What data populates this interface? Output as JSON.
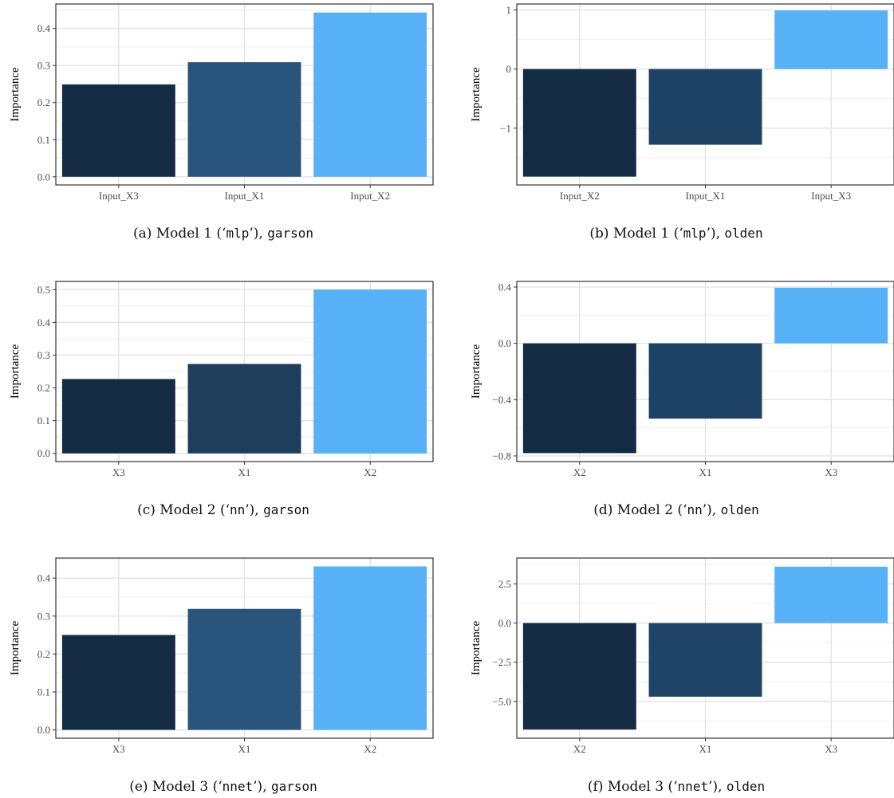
{
  "chart_data": [
    {
      "type": "bar",
      "ylabel": "Importance",
      "categories": [
        "Input_X3",
        "Input_X1",
        "Input_X2"
      ],
      "values": [
        0.249,
        0.309,
        0.443
      ],
      "ylim": [
        -0.022,
        0.466
      ],
      "yticks": [
        0.0,
        0.1,
        0.2,
        0.3,
        0.4
      ],
      "ytick_labels": [
        "0.0",
        "0.1",
        "0.2",
        "0.3",
        "0.4"
      ],
      "colors": [
        "#132B43",
        "#29557D",
        "#56B1F7"
      ],
      "grid": true,
      "caption": {
        "prefix": "(a) Model 1 (‘",
        "code": "mlp",
        "mid": "’), ",
        "method": "garson"
      }
    },
    {
      "type": "bar",
      "ylabel": "Importance",
      "categories": [
        "Input_X2",
        "Input_X1",
        "Input_X3"
      ],
      "values": [
        -1.82,
        -1.28,
        0.99
      ],
      "ylim": [
        -1.96,
        1.1
      ],
      "yticks": [
        -1,
        0,
        1
      ],
      "ytick_labels": [
        "−1",
        "0",
        "1"
      ],
      "colors": [
        "#132B43",
        "#1E4263",
        "#56B1F7"
      ],
      "grid": true,
      "caption": {
        "prefix": "(b) Model 1 (‘",
        "code": "mlp",
        "mid": "’), ",
        "method": "olden"
      }
    },
    {
      "type": "bar",
      "ylabel": "Importance",
      "categories": [
        "X3",
        "X1",
        "X2"
      ],
      "values": [
        0.227,
        0.273,
        0.5
      ],
      "ylim": [
        -0.025,
        0.525
      ],
      "yticks": [
        0.0,
        0.1,
        0.2,
        0.3,
        0.4,
        0.5
      ],
      "ytick_labels": [
        "0.0",
        "0.1",
        "0.2",
        "0.3",
        "0.4",
        "0.5"
      ],
      "colors": [
        "#132B43",
        "#1E3E5C",
        "#56B1F7"
      ],
      "grid": true,
      "caption": {
        "prefix": "(c) Model 2 (‘",
        "code": "nn",
        "mid": "’), ",
        "method": "garson"
      }
    },
    {
      "type": "bar",
      "ylabel": "Importance",
      "categories": [
        "X2",
        "X1",
        "X3"
      ],
      "values": [
        -0.78,
        -0.535,
        0.395
      ],
      "ylim": [
        -0.84,
        0.44
      ],
      "yticks": [
        -0.8,
        -0.4,
        0.0,
        0.4
      ],
      "ytick_labels": [
        "−0.8",
        "−0.4",
        "0.0",
        "0.4"
      ],
      "colors": [
        "#132B43",
        "#1E4263",
        "#56B1F7"
      ],
      "grid": true,
      "caption": {
        "prefix": "(d) Model 2 (‘",
        "code": "nn",
        "mid": "’), ",
        "method": "olden"
      }
    },
    {
      "type": "bar",
      "ylabel": "Importance",
      "categories": [
        "X3",
        "X1",
        "X2"
      ],
      "values": [
        0.25,
        0.319,
        0.431
      ],
      "ylim": [
        -0.022,
        0.453
      ],
      "yticks": [
        0.0,
        0.1,
        0.2,
        0.3,
        0.4
      ],
      "ytick_labels": [
        "0.0",
        "0.1",
        "0.2",
        "0.3",
        "0.4"
      ],
      "colors": [
        "#132B43",
        "#29557D",
        "#56B1F7"
      ],
      "grid": true,
      "caption": {
        "prefix": "(e) Model 3 (‘",
        "code": "nnet",
        "mid": "’), ",
        "method": "garson"
      }
    },
    {
      "type": "bar",
      "ylabel": "Importance",
      "categories": [
        "X2",
        "X1",
        "X3"
      ],
      "values": [
        -6.8,
        -4.7,
        3.6
      ],
      "ylim": [
        -7.35,
        4.15
      ],
      "yticks": [
        -5.0,
        -2.5,
        0.0,
        2.5
      ],
      "ytick_labels": [
        "−5.0",
        "−2.5",
        "0.0",
        "2.5"
      ],
      "colors": [
        "#132B43",
        "#1F4466",
        "#56B1F7"
      ],
      "grid": true,
      "caption": {
        "prefix": "(f) Model 3 (‘",
        "code": "nnet",
        "mid": "’), ",
        "method": "olden"
      }
    }
  ]
}
